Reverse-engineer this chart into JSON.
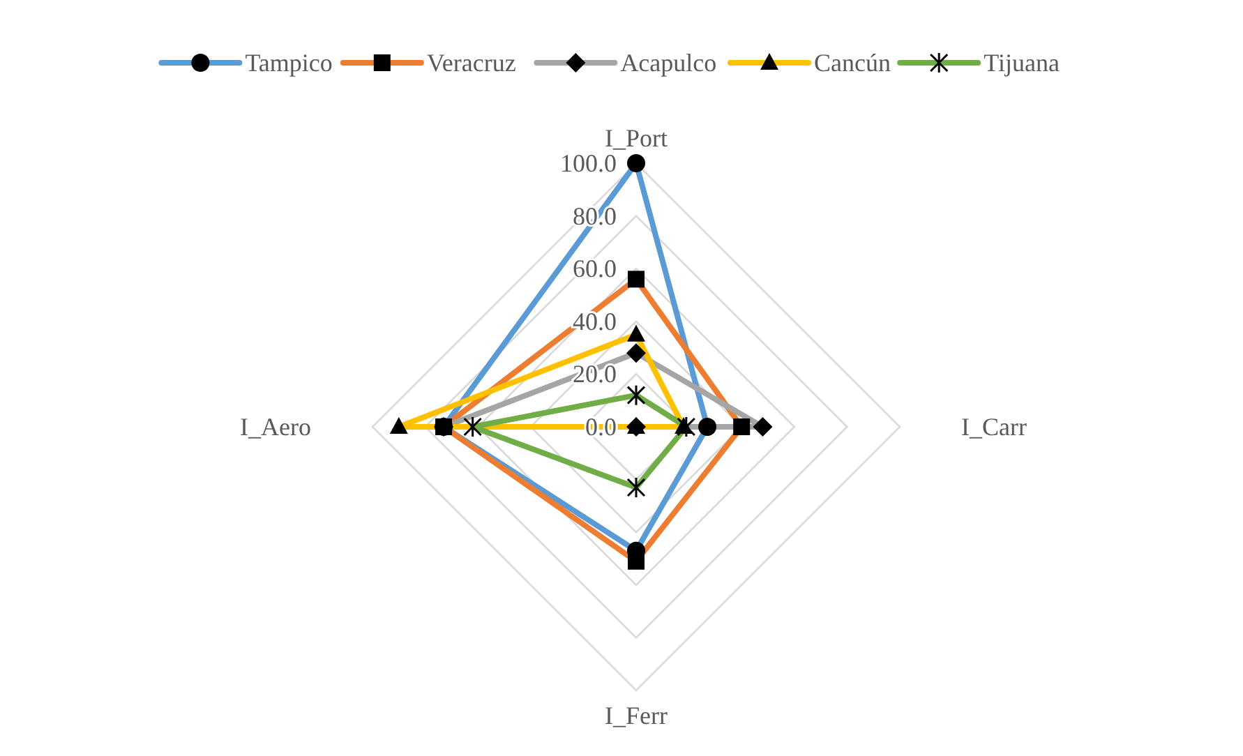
{
  "chart_data": {
    "type": "radar",
    "categories": [
      "I_Port",
      "I_Carr",
      "I_Ferr",
      "I_Aero"
    ],
    "ylim": [
      0,
      100
    ],
    "yticks": [
      {
        "value": 0,
        "label": "0.0"
      },
      {
        "value": 20,
        "label": "20.0"
      },
      {
        "value": 40,
        "label": "40.0"
      },
      {
        "value": 60,
        "label": "60.0"
      },
      {
        "value": 80,
        "label": "80.0"
      },
      {
        "value": 100,
        "label": "100.0"
      }
    ],
    "grid": true,
    "legend": "top",
    "line_style": "solid",
    "series": [
      {
        "name": "Tampico",
        "color": "#5b9bd5",
        "marker": "circle",
        "values": [
          100,
          27,
          47,
          73
        ]
      },
      {
        "name": "Veracruz",
        "color": "#ed7d31",
        "marker": "square",
        "values": [
          56,
          40,
          51,
          73
        ]
      },
      {
        "name": "Acapulco",
        "color": "#a5a5a5",
        "marker": "diamond",
        "values": [
          28,
          48,
          0,
          73
        ]
      },
      {
        "name": "Cancún",
        "color": "#ffc000",
        "marker": "triangle",
        "values": [
          35,
          18,
          0,
          90
        ]
      },
      {
        "name": "Tijuana",
        "color": "#70ad47",
        "marker": "cross",
        "values": [
          12,
          19,
          23,
          62
        ]
      }
    ]
  }
}
